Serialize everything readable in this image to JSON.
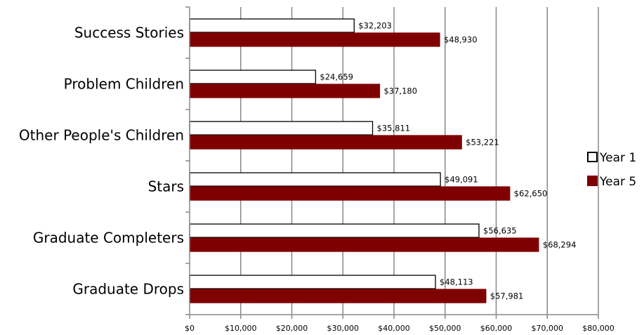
{
  "chart_data": {
    "type": "bar",
    "orientation": "horizontal",
    "title": "",
    "xlabel": "",
    "ylabel": "",
    "categories": [
      "Success Stories",
      "Problem Children",
      "Other People's Children",
      "Stars",
      "Graduate Completers",
      "Graduate Drops"
    ],
    "series": [
      {
        "name": "Year 1",
        "color": "#ffffff",
        "edge_color": "#000000",
        "values": [
          32203,
          24659,
          35811,
          49091,
          56635,
          48113
        ],
        "labels": [
          "$32,203",
          "$24,659",
          "$35,811",
          "$49,091",
          "$56,635",
          "$48,113"
        ]
      },
      {
        "name": "Year 5",
        "color": "#7f0000",
        "edge_color": "#7f0000",
        "values": [
          48930,
          37180,
          53221,
          62650,
          68294,
          57981
        ],
        "labels": [
          "$48,930",
          "$37,180",
          "$53,221",
          "$62,650",
          "$68,294",
          "$57,981"
        ]
      }
    ],
    "xlim": [
      0,
      80000
    ],
    "xticks": [
      0,
      10000,
      20000,
      30000,
      40000,
      50000,
      60000,
      70000,
      80000
    ],
    "xtick_labels": [
      "$0",
      "$10,000",
      "$20,000",
      "$30,000",
      "$40,000",
      "$50,000",
      "$60,000",
      "$70,000",
      "$80,000"
    ],
    "grid": "vertical",
    "gridline_color": "#888888",
    "legend_position": "right"
  }
}
